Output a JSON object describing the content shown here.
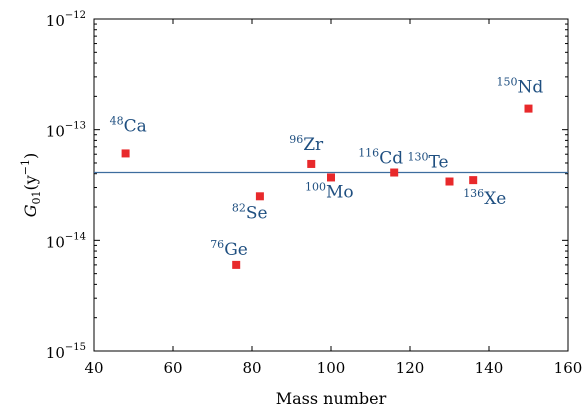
{
  "chart_data": {
    "type": "scatter",
    "xlabel": "Mass number",
    "ylabel": {
      "base": "G",
      "sub": "01",
      "unit_open": "(y",
      "unit_exp": "−1",
      "unit_close": ")"
    },
    "xlim": [
      40,
      160
    ],
    "ylim": [
      1e-15,
      1e-12
    ],
    "yscale": "log",
    "x_ticks": [
      40,
      60,
      80,
      100,
      120,
      140,
      160
    ],
    "y_ticks": [
      {
        "value": 1e-15,
        "base": "10",
        "exp": "−15"
      },
      {
        "value": 1e-14,
        "base": "10",
        "exp": "−14"
      },
      {
        "value": 1e-13,
        "base": "10",
        "exp": "−13"
      },
      {
        "value": 1e-12,
        "base": "10",
        "exp": "−12"
      }
    ],
    "grid": false,
    "reference_line": {
      "y": 4.1e-14,
      "color": "#3d6d9e"
    },
    "marker_color": "#e8292b",
    "label_color": "#1f4f80",
    "points": [
      {
        "mass": "48",
        "symbol": "Ca",
        "x": 48,
        "y": 6.1e-14
      },
      {
        "mass": "76",
        "symbol": "Ge",
        "x": 76,
        "y": 6e-15
      },
      {
        "mass": "82",
        "symbol": "Se",
        "x": 82,
        "y": 2.5e-14
      },
      {
        "mass": "96",
        "symbol": "Zr",
        "x": 95,
        "y": 4.9e-14
      },
      {
        "mass": "100",
        "symbol": "Mo",
        "x": 100,
        "y": 3.7e-14
      },
      {
        "mass": "116",
        "symbol": "Cd",
        "x": 116,
        "y": 4.1e-14
      },
      {
        "mass": "130",
        "symbol": "Te",
        "x": 130,
        "y": 3.4e-14
      },
      {
        "mass": "136",
        "symbol": "Xe",
        "x": 136,
        "y": 3.5e-14
      },
      {
        "mass": "150",
        "symbol": "Nd",
        "x": 150,
        "y": 1.55e-13
      }
    ]
  }
}
